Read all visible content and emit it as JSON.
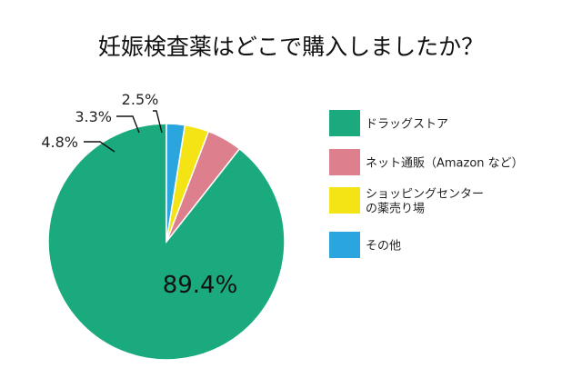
{
  "chart_data": {
    "type": "pie",
    "title": "妊娠検査薬はどこで購入しましたか？",
    "start": "12 o'clock",
    "direction": "counterclockwise",
    "legend_position": "right",
    "slices": [
      {
        "label": [
          "ドラッグストア"
        ],
        "value": 89.4,
        "value_label": "89.4%",
        "color": "#1aaa7e"
      },
      {
        "label": [
          "ネット通販（Amazon など）"
        ],
        "value": 4.8,
        "value_label": "4.8%",
        "color": "#dd7f8c"
      },
      {
        "label": [
          "ショッピングセンター",
          "の薬売り場"
        ],
        "value": 3.3,
        "value_label": "3.3%",
        "color": "#f5e415"
      },
      {
        "label": [
          "その他"
        ],
        "value": 2.5,
        "value_label": "2.5%",
        "color": "#2aa5dd"
      }
    ]
  }
}
